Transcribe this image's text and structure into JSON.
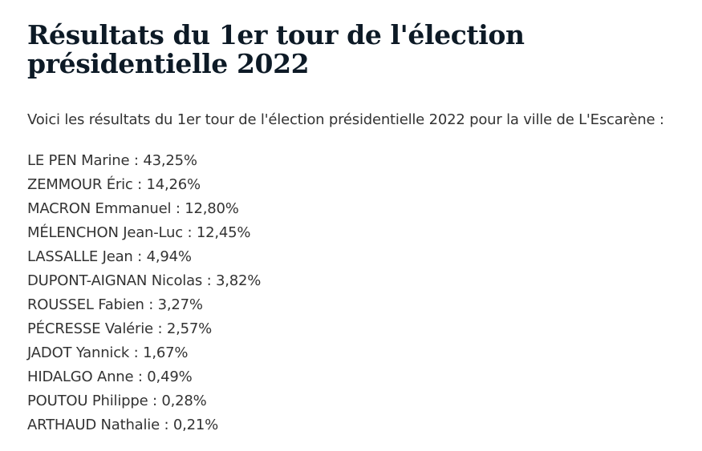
{
  "article": {
    "title": "Résultats du 1er tour de l'élection présidentielle 2022",
    "intro": "Voici les résultats du 1er tour de l'élection présidentielle 2022 pour la ville de L'Escarène :",
    "results": [
      {
        "candidate": "LE PEN Marine",
        "percent": "43,25%"
      },
      {
        "candidate": "ZEMMOUR Éric",
        "percent": "14,26%"
      },
      {
        "candidate": "MACRON Emmanuel",
        "percent": "12,80%"
      },
      {
        "candidate": "MÉLENCHON Jean-Luc",
        "percent": "12,45%"
      },
      {
        "candidate": "LASSALLE Jean",
        "percent": "4,94%"
      },
      {
        "candidate": "DUPONT-AIGNAN Nicolas",
        "percent": "3,82%"
      },
      {
        "candidate": "ROUSSEL Fabien",
        "percent": "3,27%"
      },
      {
        "candidate": "PÉCRESSE Valérie",
        "percent": "2,57%"
      },
      {
        "candidate": "JADOT Yannick",
        "percent": "1,67%"
      },
      {
        "candidate": "HIDALGO Anne",
        "percent": "0,49%"
      },
      {
        "candidate": "POUTOU Philippe",
        "percent": "0,28%"
      },
      {
        "candidate": "ARTHAUD Nathalie",
        "percent": "0,21%"
      }
    ],
    "separator": " : ",
    "colors": {
      "title": "#0d1a26",
      "text": "#333333",
      "background": "#ffffff"
    }
  }
}
